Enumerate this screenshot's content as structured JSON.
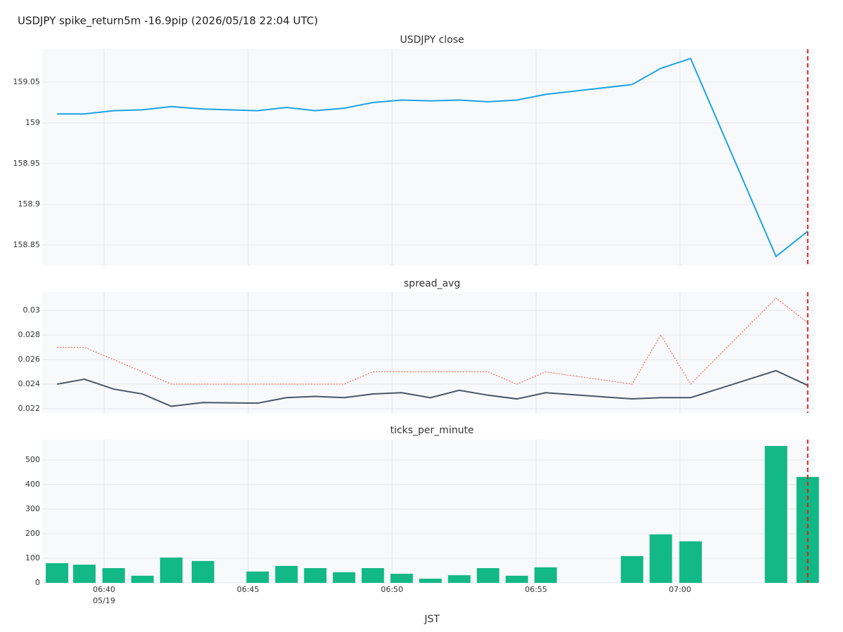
{
  "title": "USDJPY spike_return5m -16.9pip (2026/05/18 22:04 UTC)",
  "event_time": "07:04:26",
  "chart_data": [
    {
      "type": "line",
      "title": "USDJPY close",
      "x": [
        "06:38:22",
        "06:39:19",
        "06:40:20",
        "06:41:20",
        "06:42:20",
        "06:43:26",
        "06:45:20",
        "06:46:20",
        "06:47:20",
        "06:48:20",
        "06:49:20",
        "06:50:20",
        "06:51:20",
        "06:52:20",
        "06:53:20",
        "06:54:20",
        "06:55:20",
        "06:58:20",
        "06:59:20",
        "07:00:22",
        "07:03:20",
        "07:04:26"
      ],
      "series": [
        {
          "color": "#1ba3e6",
          "values": [
            159.011,
            159.011,
            159.015,
            159.016,
            159.02,
            159.017,
            159.015,
            159.019,
            159.015,
            159.018,
            159.025,
            159.028,
            159.027,
            159.028,
            159.026,
            159.028,
            159.035,
            159.047,
            159.067,
            159.079,
            158.836,
            158.867
          ]
        }
      ],
      "xlim": [
        "06:37:51",
        "07:04:41"
      ],
      "ylim": [
        158.825,
        159.0905
      ],
      "yticks": [
        158.85,
        158.9,
        158.95,
        159,
        159.05
      ],
      "grid": true
    },
    {
      "type": "line",
      "title": "spread_avg",
      "x": [
        "06:38:22",
        "06:39:19",
        "06:40:20",
        "06:41:20",
        "06:42:20",
        "06:43:26",
        "06:45:20",
        "06:46:20",
        "06:47:20",
        "06:48:20",
        "06:49:20",
        "06:50:20",
        "06:51:20",
        "06:52:20",
        "06:53:20",
        "06:54:20",
        "06:55:20",
        "06:58:20",
        "06:59:20",
        "07:00:22",
        "07:03:20",
        "07:04:26"
      ],
      "series": [
        {
          "color": "#4a5568",
          "dash": "solid",
          "values": [
            0.024,
            0.0244,
            0.0236,
            0.0232,
            0.0222,
            0.0225,
            0.02245,
            0.0229,
            0.023,
            0.0229,
            0.0232,
            0.0233,
            0.0229,
            0.0235,
            0.0231,
            0.0228,
            0.0233,
            0.0228,
            0.0229,
            0.0229,
            0.0251,
            0.0239
          ]
        },
        {
          "color": "#ef553b",
          "dash": "dot",
          "values": [
            0.027,
            0.027,
            0.026,
            0.025,
            0.024,
            0.024,
            0.024,
            0.024,
            0.024,
            0.024,
            0.025,
            0.025,
            0.025,
            0.025,
            0.025,
            0.024,
            0.025,
            0.024,
            0.028,
            0.024,
            0.031,
            0.029
          ]
        }
      ],
      "xlim": [
        "06:37:51",
        "07:04:41"
      ],
      "ylim": [
        0.02166,
        0.03149
      ],
      "yticks": [
        0.022,
        0.024,
        0.026,
        0.028,
        0.03
      ],
      "grid": true
    },
    {
      "type": "bar",
      "title": "ticks_per_minute",
      "x": [
        "06:38:22",
        "06:39:19",
        "06:40:20",
        "06:41:20",
        "06:42:20",
        "06:43:26",
        "06:45:20",
        "06:46:20",
        "06:47:20",
        "06:48:20",
        "06:49:20",
        "06:50:20",
        "06:51:20",
        "06:52:20",
        "06:53:20",
        "06:54:20",
        "06:55:20",
        "06:58:20",
        "06:59:20",
        "07:00:22",
        "07:03:20",
        "07:04:26"
      ],
      "series": [
        {
          "color": "#12b886",
          "values": [
            80,
            74,
            60,
            29,
            103,
            89,
            46,
            69,
            60,
            43,
            60,
            37,
            17,
            31,
            60,
            29,
            63,
            109,
            197,
            169,
            557,
            431
          ]
        }
      ],
      "xlim": [
        "06:37:51",
        "07:04:41"
      ],
      "ylim": [
        0,
        583
      ],
      "yticks": [
        0,
        100,
        200,
        300,
        400,
        500
      ],
      "grid": true,
      "xticks": [
        {
          "value": "06:40:00",
          "label": "06:40"
        },
        {
          "value": "06:45:00",
          "label": "06:45"
        },
        {
          "value": "06:50:00",
          "label": "06:50"
        },
        {
          "value": "06:55:00",
          "label": "06:55"
        },
        {
          "value": "07:00:00",
          "label": "07:00"
        }
      ],
      "date_label": "05/19",
      "xlabel": "JST"
    }
  ]
}
